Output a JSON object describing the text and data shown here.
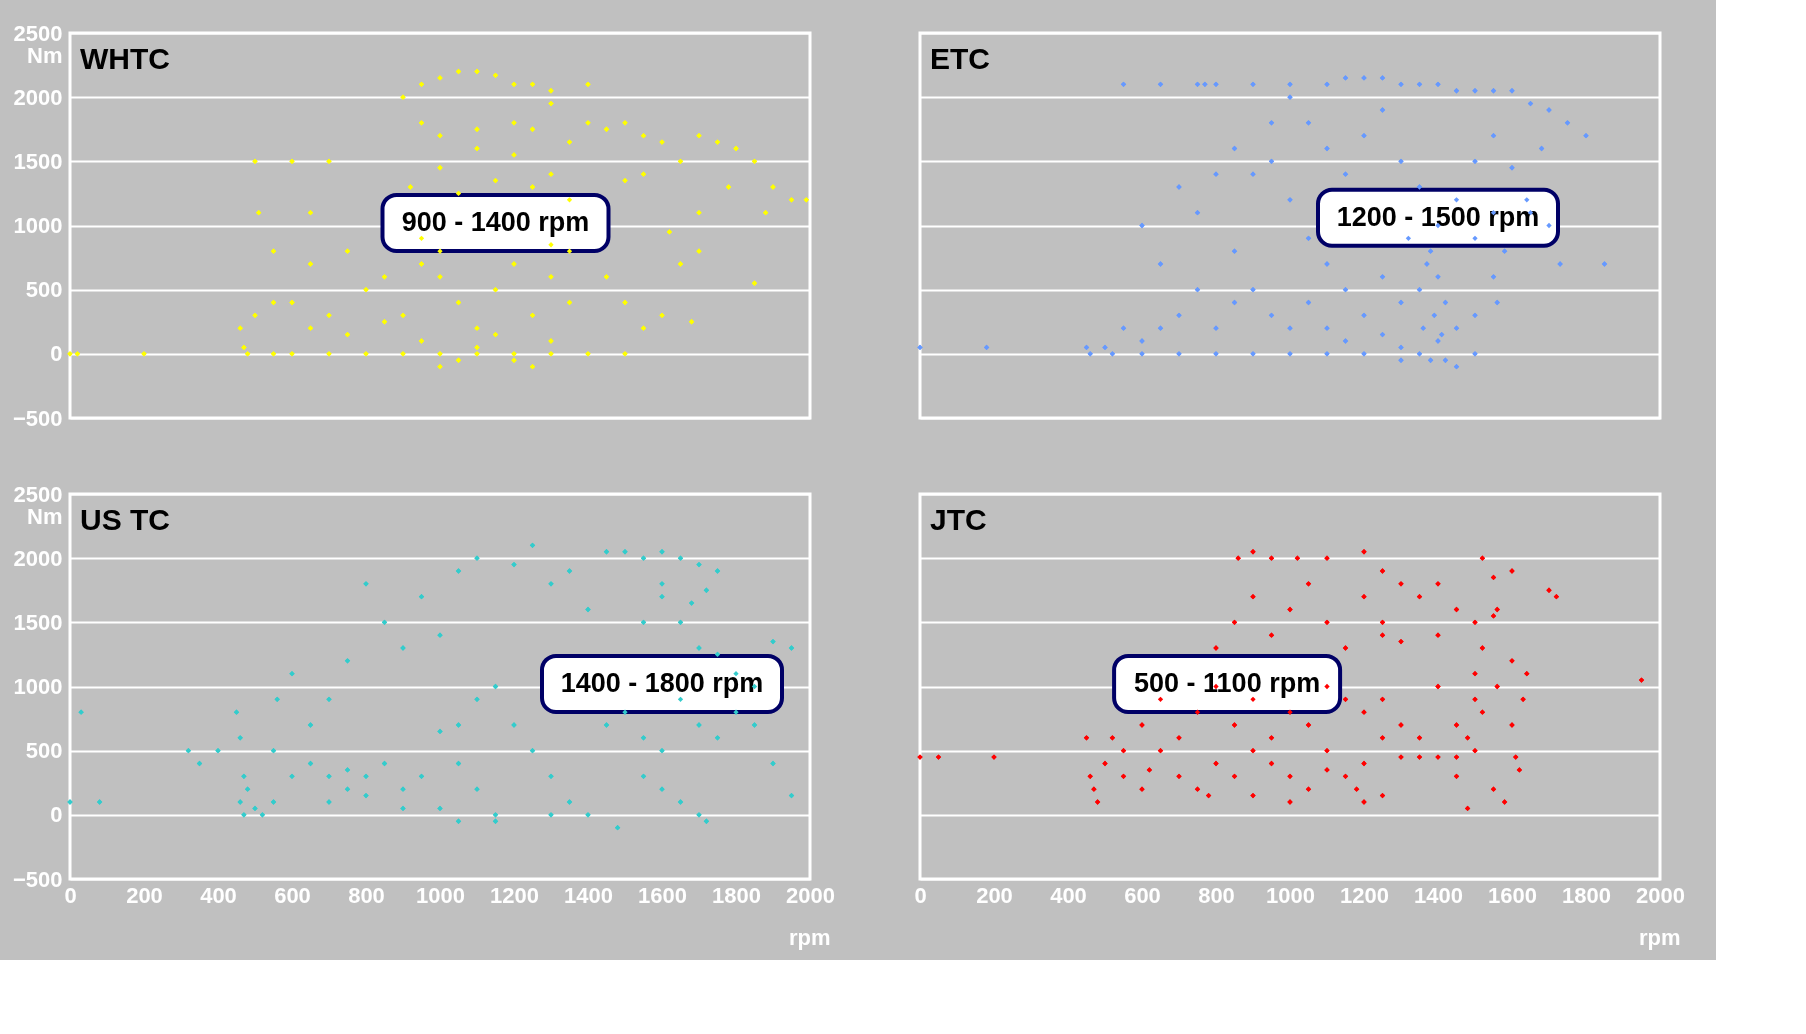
{
  "chart_data": [
    {
      "type": "scatter",
      "title": "WHTC",
      "ylabel": "Nm",
      "annotations": [
        "900 - 1400 rpm"
      ],
      "tick_labels": "y",
      "grid": "y",
      "marker": "diamond",
      "xlim": [
        0,
        2000
      ],
      "ylim": [
        -500,
        2500
      ],
      "xticks": [
        0,
        200,
        400,
        600,
        800,
        1000,
        1200,
        1400,
        1600,
        1800,
        2000
      ],
      "yticks": [
        -500,
        0,
        500,
        1000,
        1500,
        2000,
        2500
      ],
      "series": [
        {
          "color": "#ffff00",
          "x": [
            1000,
            1050,
            1100,
            1150,
            1200,
            1250,
            1300,
            1400,
            900,
            950,
            1300,
            950,
            1000,
            1100,
            1200,
            1250,
            1350,
            1400,
            1450,
            1500,
            1550,
            1600,
            1650,
            1700,
            1750,
            1800,
            1850,
            1900,
            1950,
            1990,
            1880,
            1850,
            1700,
            1680,
            1550,
            1500,
            1350,
            1300,
            1200,
            1100,
            1000,
            920,
            1050,
            1150,
            1250,
            500,
            510,
            600,
            700,
            650,
            750,
            550,
            650,
            500,
            460,
            470,
            480,
            550,
            600,
            700,
            800,
            900,
            1000,
            1100,
            1200,
            1300,
            1400,
            1500,
            0,
            20,
            200,
            600,
            700,
            800,
            850,
            950,
            1000,
            1050,
            1100,
            1150,
            1200,
            1250,
            1300,
            1350,
            1000,
            1050,
            1100,
            1150,
            1200,
            1250,
            1300,
            950,
            900,
            1350,
            1450,
            1500,
            1550,
            1600,
            1650,
            1700,
            1780,
            1620,
            550,
            650,
            750,
            850,
            950,
            1000,
            1300
          ],
          "values": [
            2150,
            2200,
            2200,
            2170,
            2100,
            2100,
            2050,
            2100,
            2000,
            2100,
            1950,
            1800,
            1700,
            1750,
            1800,
            1750,
            1650,
            1800,
            1750,
            1800,
            1700,
            1650,
            1500,
            1700,
            1650,
            1600,
            1500,
            1300,
            1200,
            1200,
            1100,
            550,
            800,
            250,
            1400,
            1350,
            1200,
            1400,
            1550,
            1600,
            1450,
            1300,
            1250,
            1350,
            1300,
            1500,
            1100,
            1500,
            1500,
            1100,
            800,
            800,
            700,
            300,
            200,
            50,
            0,
            0,
            0,
            0,
            0,
            0,
            0,
            0,
            0,
            0,
            0,
            0,
            0,
            0,
            0,
            400,
            300,
            500,
            250,
            700,
            600,
            400,
            200,
            500,
            700,
            300,
            600,
            400,
            -100,
            -50,
            50,
            150,
            -50,
            -100,
            100,
            100,
            300,
            800,
            600,
            400,
            200,
            300,
            700,
            1100,
            1300,
            950,
            400,
            200,
            150,
            600,
            900,
            800,
            850
          ]
        }
      ]
    },
    {
      "type": "scatter",
      "title": "ETC",
      "annotations": [
        "1200 - 1500 rpm"
      ],
      "tick_labels": false,
      "grid": "y",
      "marker": "diamond",
      "xlim": [
        0,
        2000
      ],
      "ylim": [
        -500,
        2500
      ],
      "xticks": [
        0,
        200,
        400,
        600,
        800,
        1000,
        1200,
        1400,
        1600,
        1800,
        2000
      ],
      "yticks": [
        -500,
        0,
        500,
        1000,
        1500,
        2000,
        2500
      ],
      "series": [
        {
          "color": "#6699ff",
          "x": [
            0,
            180,
            550,
            650,
            750,
            770,
            800,
            900,
            1000,
            1100,
            1150,
            1200,
            1250,
            1300,
            1350,
            1400,
            1450,
            1500,
            1550,
            1600,
            1650,
            1700,
            1750,
            1800,
            1680,
            1600,
            1640,
            1700,
            1730,
            1850,
            1650,
            1580,
            1550,
            1560,
            1500,
            1450,
            1400,
            1350,
            1380,
            1420,
            1300,
            1250,
            1200,
            1150,
            1100,
            1050,
            1000,
            950,
            900,
            850,
            950,
            1000,
            1050,
            1100,
            1150,
            1200,
            1250,
            1300,
            1350,
            1400,
            1380,
            1400,
            1350,
            1420,
            1390,
            1360,
            1410,
            1370,
            1320,
            1450,
            1500,
            1550,
            600,
            650,
            700,
            750,
            800,
            850,
            900,
            950,
            1000,
            1050,
            750,
            700,
            650,
            600,
            500,
            450,
            460,
            520,
            600,
            700,
            800,
            900,
            1000,
            1100,
            1200,
            1300,
            1500,
            1450,
            550,
            800,
            850,
            1100,
            1150,
            1250,
            1300,
            1500,
            1550
          ],
          "values": [
            50,
            50,
            2100,
            2100,
            2100,
            2100,
            2100,
            2100,
            2100,
            2100,
            2150,
            2150,
            2150,
            2100,
            2100,
            2100,
            2050,
            2050,
            2050,
            2050,
            1950,
            1900,
            1800,
            1700,
            1600,
            1450,
            1200,
            1000,
            700,
            700,
            1100,
            800,
            600,
            400,
            300,
            200,
            100,
            0,
            -50,
            -50,
            50,
            150,
            300,
            500,
            700,
            900,
            1200,
            1500,
            1400,
            1600,
            1800,
            2000,
            1800,
            1600,
            1400,
            1700,
            1900,
            1500,
            1300,
            1000,
            800,
            600,
            500,
            400,
            300,
            200,
            150,
            700,
            900,
            1200,
            1500,
            1700,
            1000,
            700,
            1300,
            1100,
            1400,
            800,
            500,
            300,
            200,
            400,
            500,
            300,
            200,
            100,
            50,
            50,
            0,
            0,
            0,
            0,
            0,
            0,
            0,
            0,
            0,
            -50,
            0,
            -100,
            200,
            200,
            400,
            200,
            100,
            600,
            400,
            900,
            1100
          ]
        }
      ]
    },
    {
      "type": "scatter",
      "title": "US TC",
      "ylabel": "Nm",
      "xlabel": "rpm",
      "annotations": [
        "1400 - 1800 rpm"
      ],
      "grid": "y",
      "marker": "diamond",
      "xlim": [
        0,
        2000
      ],
      "ylim": [
        -500,
        2500
      ],
      "xticks": [
        0,
        200,
        400,
        600,
        800,
        1000,
        1200,
        1400,
        1600,
        1800,
        2000
      ],
      "yticks": [
        -500,
        0,
        500,
        1000,
        1500,
        2000,
        2500
      ],
      "series": [
        {
          "color": "#33cccc",
          "x": [
            0,
            30,
            80,
            320,
            350,
            400,
            450,
            460,
            470,
            460,
            470,
            480,
            500,
            520,
            550,
            560,
            600,
            650,
            700,
            750,
            800,
            850,
            900,
            950,
            1000,
            1050,
            1100,
            1200,
            1250,
            1300,
            1350,
            1400,
            1450,
            1500,
            1550,
            1600,
            1650,
            1700,
            1720,
            1600,
            1550,
            1650,
            1700,
            1750,
            1800,
            1850,
            1900,
            1950,
            1500,
            1450,
            1550,
            1600,
            1650,
            1700,
            1750,
            1800,
            1850,
            1900,
            1950,
            1550,
            1600,
            1650,
            1700,
            1720,
            1400,
            1350,
            1300,
            1250,
            1200,
            1150,
            1100,
            1050,
            1000,
            1000,
            1050,
            1150,
            1300,
            1480,
            600,
            650,
            700,
            750,
            800,
            850,
            900,
            900,
            950,
            1050,
            1100,
            1150,
            550,
            700,
            750,
            800,
            1600,
            1750,
            1680
          ],
          "values": [
            100,
            800,
            100,
            500,
            400,
            500,
            800,
            600,
            300,
            100,
            0,
            200,
            50,
            0,
            500,
            900,
            1100,
            700,
            900,
            1200,
            1800,
            1500,
            1300,
            1700,
            1400,
            1900,
            2000,
            1950,
            2100,
            1800,
            1900,
            1600,
            2050,
            2050,
            2000,
            2050,
            2000,
            1950,
            1750,
            1700,
            1500,
            1500,
            1300,
            1250,
            1100,
            1000,
            1350,
            1300,
            800,
            700,
            600,
            500,
            900,
            700,
            600,
            800,
            700,
            400,
            150,
            300,
            200,
            100,
            0,
            -50,
            0,
            100,
            300,
            500,
            700,
            0,
            200,
            400,
            650,
            50,
            -50,
            -50,
            0,
            -100,
            300,
            400,
            300,
            350,
            300,
            400,
            200,
            50,
            300,
            700,
            900,
            1000,
            100,
            100,
            200,
            150,
            1800,
            1900,
            1650
          ]
        }
      ]
    },
    {
      "type": "scatter",
      "title": "JTC",
      "xlabel": "rpm",
      "annotations": [
        "500 - 1100 rpm"
      ],
      "tick_labels": "x",
      "grid": "y",
      "marker": "diamond",
      "xlim": [
        0,
        2000
      ],
      "ylim": [
        -500,
        2500
      ],
      "xticks": [
        0,
        200,
        400,
        600,
        800,
        1000,
        1200,
        1400,
        1600,
        1800,
        2000
      ],
      "yticks": [
        -500,
        0,
        500,
        1000,
        1500,
        2000,
        2500
      ],
      "series": [
        {
          "color": "#ff0000",
          "x": [
            0,
            50,
            200,
            450,
            460,
            470,
            480,
            500,
            520,
            550,
            600,
            650,
            700,
            750,
            800,
            850,
            900,
            950,
            1000,
            1050,
            1100,
            1150,
            1180,
            1200,
            700,
            750,
            800,
            850,
            900,
            950,
            1000,
            1050,
            1100,
            1150,
            1200,
            1250,
            1300,
            1350,
            1400,
            1450,
            1500,
            800,
            850,
            900,
            950,
            1000,
            1050,
            1100,
            1150,
            1200,
            1250,
            1300,
            1350,
            1400,
            1450,
            1500,
            1600,
            1700,
            1720,
            1640,
            1950,
            860,
            900,
            950,
            1020,
            1100,
            1200,
            1250,
            1300,
            1400,
            1520,
            1550,
            1250,
            1450,
            1500,
            1550,
            1580,
            1620,
            1480,
            1520,
            1560,
            1600,
            1610,
            1300,
            1350,
            1400,
            1450,
            1520,
            1550,
            1600,
            1630,
            1480,
            1500,
            1560,
            1250,
            1200,
            600,
            650,
            550,
            900,
            1000,
            1100,
            1250,
            780,
            620
          ],
          "values": [
            450,
            450,
            450,
            600,
            300,
            200,
            100,
            400,
            600,
            300,
            200,
            500,
            300,
            200,
            400,
            300,
            150,
            400,
            300,
            200,
            500,
            300,
            200,
            100,
            600,
            800,
            1000,
            700,
            900,
            600,
            800,
            700,
            1000,
            900,
            800,
            900,
            700,
            600,
            1000,
            700,
            900,
            1300,
            1500,
            1700,
            1400,
            1600,
            1800,
            1500,
            1300,
            1700,
            1500,
            1350,
            1700,
            1400,
            1600,
            1500,
            1900,
            1750,
            1700,
            1100,
            1050,
            2000,
            2050,
            2000,
            2000,
            2000,
            2050,
            1900,
            1800,
            1800,
            2000,
            1850,
            1400,
            300,
            500,
            200,
            100,
            350,
            600,
            800,
            1000,
            700,
            450,
            450,
            450,
            450,
            450,
            1300,
            1550,
            1200,
            900,
            50,
            1100,
            1600,
            600,
            400,
            700,
            900,
            500,
            500,
            100,
            350,
            150,
            150,
            350
          ]
        }
      ]
    }
  ]
}
